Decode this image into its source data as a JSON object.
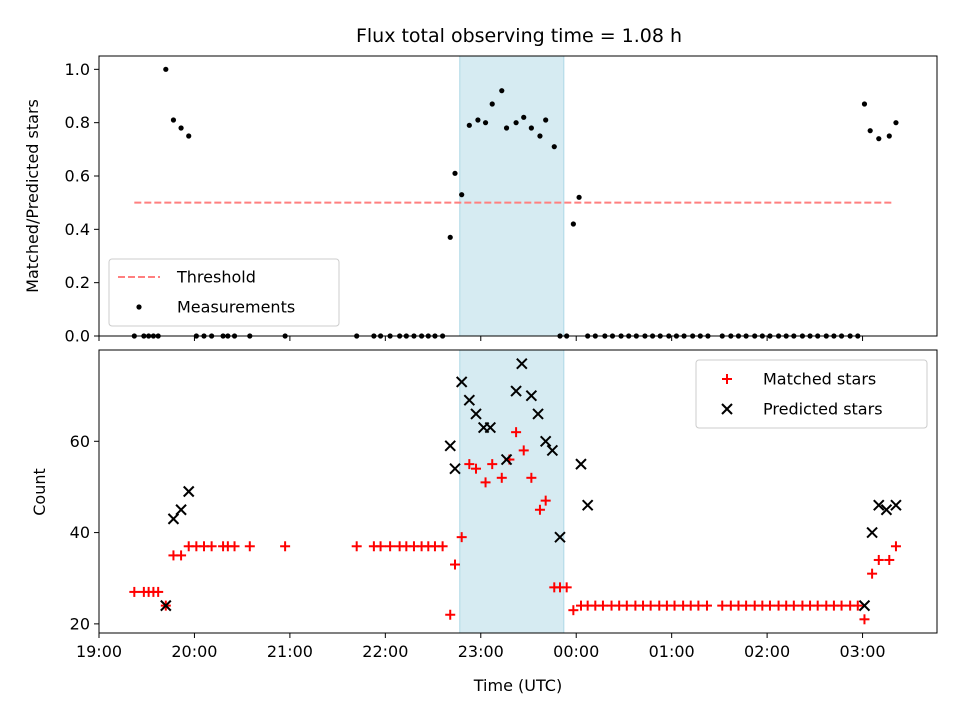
{
  "chart_data": [
    {
      "type": "scatter",
      "title": "Flux total observing time = 1.08 h",
      "ylabel": "Matched/Predicted stars",
      "xlabel": "",
      "xlim": [
        19.0,
        27.78
      ],
      "ylim": [
        0,
        1.05
      ],
      "yticks": [
        0.0,
        0.2,
        0.4,
        0.6,
        0.8,
        1.0
      ],
      "ytick_labels": [
        "0.0",
        "0.2",
        "0.4",
        "0.6",
        "0.8",
        "1.0"
      ],
      "xticks": [
        19,
        20,
        21,
        22,
        23,
        24,
        25,
        26,
        27
      ],
      "shaded_region": {
        "x0": 22.78,
        "x1": 23.87,
        "color": "#add8e6"
      },
      "threshold": {
        "name": "Threshold",
        "y": 0.5,
        "x0": 19.37,
        "x1": 27.33,
        "color": "#ff7f7f",
        "style": "dashed"
      },
      "legend": {
        "position": "lower-left",
        "entries": [
          "Threshold",
          "Measurements"
        ]
      },
      "series": [
        {
          "name": "Measurements",
          "marker": "dot",
          "color": "#000000",
          "x": [
            19.37,
            19.47,
            19.52,
            19.57,
            19.62,
            19.7,
            19.78,
            19.86,
            19.94,
            20.02,
            20.1,
            20.18,
            20.3,
            20.35,
            20.42,
            20.58,
            20.95,
            21.7,
            21.88,
            21.95,
            22.05,
            22.15,
            22.22,
            22.3,
            22.38,
            22.45,
            22.52,
            22.6,
            22.68,
            22.73,
            22.8,
            22.88,
            22.97,
            23.05,
            23.12,
            23.22,
            23.27,
            23.37,
            23.45,
            23.53,
            23.62,
            23.68,
            23.77,
            23.83,
            23.9,
            23.97,
            24.03,
            24.12,
            24.2,
            24.3,
            24.38,
            24.47,
            24.55,
            24.63,
            24.72,
            24.8,
            24.88,
            24.97,
            25.05,
            25.13,
            25.22,
            25.3,
            25.38,
            25.53,
            25.62,
            25.7,
            25.78,
            25.87,
            25.95,
            26.03,
            26.12,
            26.2,
            26.28,
            26.37,
            26.45,
            26.53,
            26.62,
            26.7,
            26.78,
            26.87,
            26.95,
            27.02,
            27.08,
            27.17,
            27.28,
            27.35
          ],
          "y": [
            0,
            0,
            0,
            0,
            0,
            1.0,
            0.81,
            0.78,
            0.75,
            0,
            0,
            0,
            0,
            0,
            0,
            0,
            0,
            0,
            0,
            0,
            0,
            0,
            0,
            0,
            0,
            0,
            0,
            0,
            0.37,
            0.61,
            0.53,
            0.79,
            0.81,
            0.8,
            0.87,
            0.92,
            0.78,
            0.8,
            0.82,
            0.78,
            0.75,
            0.81,
            0.71,
            0,
            0,
            0.42,
            0.52,
            0,
            0,
            0,
            0,
            0,
            0,
            0,
            0,
            0,
            0,
            0,
            0,
            0,
            0,
            0,
            0,
            0,
            0,
            0,
            0,
            0,
            0,
            0,
            0,
            0,
            0,
            0,
            0,
            0,
            0,
            0,
            0,
            0,
            0,
            0.87,
            0.77,
            0.74,
            0.75,
            0.8
          ]
        }
      ]
    },
    {
      "type": "scatter",
      "title": "",
      "ylabel": "Count",
      "xlabel": "Time (UTC)",
      "xlim": [
        19.0,
        27.78
      ],
      "ylim": [
        18,
        80
      ],
      "yticks": [
        20,
        40,
        60
      ],
      "ytick_labels": [
        "20",
        "40",
        "60"
      ],
      "xticks": [
        19,
        20,
        21,
        22,
        23,
        24,
        25,
        26,
        27
      ],
      "xtick_labels": [
        "19:00",
        "20:00",
        "21:00",
        "22:00",
        "23:00",
        "00:00",
        "01:00",
        "02:00",
        "03:00"
      ],
      "shaded_region": {
        "x0": 22.78,
        "x1": 23.87,
        "color": "#add8e6"
      },
      "legend": {
        "position": "upper-right",
        "entries": [
          "Matched stars",
          "Predicted stars"
        ]
      },
      "series": [
        {
          "name": "Matched stars",
          "marker": "plus",
          "color": "#ff0000",
          "x": [
            19.37,
            19.47,
            19.52,
            19.57,
            19.62,
            19.7,
            19.78,
            19.86,
            19.94,
            20.02,
            20.1,
            20.18,
            20.3,
            20.35,
            20.42,
            20.58,
            20.95,
            21.7,
            21.88,
            21.95,
            22.05,
            22.15,
            22.22,
            22.3,
            22.38,
            22.45,
            22.52,
            22.6,
            22.68,
            22.73,
            22.8,
            22.88,
            22.95,
            23.05,
            23.12,
            23.22,
            23.3,
            23.37,
            23.45,
            23.53,
            23.62,
            23.68,
            23.77,
            23.83,
            23.9,
            23.97,
            24.05,
            24.12,
            24.2,
            24.28,
            24.37,
            24.45,
            24.53,
            24.62,
            24.7,
            24.78,
            24.87,
            24.95,
            25.03,
            25.12,
            25.2,
            25.28,
            25.37,
            25.53,
            25.62,
            25.7,
            25.78,
            25.87,
            25.95,
            26.03,
            26.12,
            26.2,
            26.28,
            26.37,
            26.45,
            26.53,
            26.62,
            26.7,
            26.78,
            26.87,
            26.95,
            27.02,
            27.1,
            27.17,
            27.28,
            27.35
          ],
          "y": [
            27,
            27,
            27,
            27,
            27,
            24,
            35,
            35,
            37,
            37,
            37,
            37,
            37,
            37,
            37,
            37,
            37,
            37,
            37,
            37,
            37,
            37,
            37,
            37,
            37,
            37,
            37,
            37,
            22,
            33,
            39,
            55,
            54,
            51,
            55,
            52,
            56,
            62,
            58,
            52,
            45,
            47,
            28,
            28,
            28,
            23,
            24,
            24,
            24,
            24,
            24,
            24,
            24,
            24,
            24,
            24,
            24,
            24,
            24,
            24,
            24,
            24,
            24,
            24,
            24,
            24,
            24,
            24,
            24,
            24,
            24,
            24,
            24,
            24,
            24,
            24,
            24,
            24,
            24,
            24,
            24,
            21,
            31,
            34,
            34,
            37
          ]
        },
        {
          "name": "Predicted stars",
          "marker": "x",
          "color": "#000000",
          "x": [
            19.7,
            19.78,
            19.86,
            19.94,
            22.68,
            22.73,
            22.8,
            22.88,
            22.95,
            23.03,
            23.1,
            23.27,
            23.37,
            23.43,
            23.53,
            23.6,
            23.68,
            23.75,
            23.83,
            24.05,
            24.12,
            27.02,
            27.1,
            27.17,
            27.25,
            27.35
          ],
          "y": [
            24,
            43,
            45,
            49,
            59,
            54,
            73,
            69,
            66,
            63,
            63,
            56,
            71,
            77,
            70,
            66,
            60,
            58,
            39,
            55,
            46,
            24,
            40,
            46,
            45,
            46
          ]
        }
      ]
    }
  ]
}
